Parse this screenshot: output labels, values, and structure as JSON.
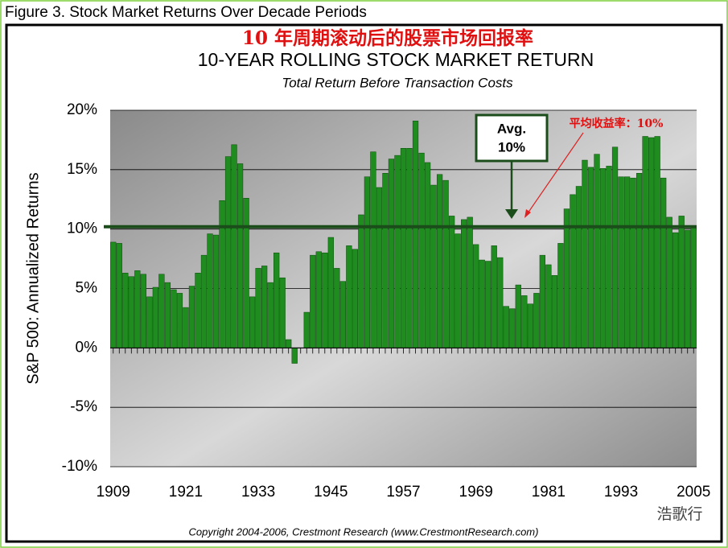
{
  "chart_data": {
    "type": "bar",
    "figure_caption": "Figure 3.  Stock Market Returns Over Decade Periods",
    "chinese_title": "10 年周期滚动后的股票市场回报率",
    "title": "10-YEAR ROLLING STOCK MARKET RETURN",
    "subtitle": "Total Return Before Transaction Costs",
    "y_label": "S&P 500: Annualized Returns",
    "copyright": "Copyright 2004-2006, Crestmont Research (www.CrestmontResearch.com)",
    "watermark": "浩歌行",
    "avg_box_label": [
      "Avg.",
      "10%"
    ],
    "avg_annotation": "平均收益率：10%",
    "avg_line": 10.2,
    "color": "#1e8c1e",
    "avg_color": "#1b4d1b",
    "ylim": [
      -10,
      20
    ],
    "yticks": [
      {
        "value": -10,
        "label": "-10%"
      },
      {
        "value": -5,
        "label": "-5%"
      },
      {
        "value": 0,
        "label": "0%"
      },
      {
        "value": 5,
        "label": "5%"
      },
      {
        "value": 10,
        "label": "10%"
      },
      {
        "value": 15,
        "label": "15%"
      },
      {
        "value": 20,
        "label": "20%"
      }
    ],
    "grid": true,
    "categories": [
      "1909",
      null,
      null,
      null,
      null,
      null,
      null,
      null,
      null,
      null,
      null,
      null,
      "1921",
      null,
      null,
      null,
      null,
      null,
      null,
      null,
      null,
      null,
      null,
      null,
      "1933",
      null,
      null,
      null,
      null,
      null,
      null,
      null,
      null,
      null,
      null,
      null,
      "1945",
      null,
      null,
      null,
      null,
      null,
      null,
      null,
      null,
      null,
      null,
      null,
      "1957",
      null,
      null,
      null,
      null,
      null,
      null,
      null,
      null,
      null,
      null,
      null,
      "1969",
      null,
      null,
      null,
      null,
      null,
      null,
      null,
      null,
      null,
      null,
      null,
      "1981",
      null,
      null,
      null,
      null,
      null,
      null,
      null,
      null,
      null,
      null,
      null,
      "1993",
      null,
      null,
      null,
      null,
      null,
      null,
      null,
      null,
      null,
      null,
      null,
      "2005"
    ],
    "values": [
      8.9,
      8.8,
      6.3,
      6.0,
      6.5,
      6.2,
      4.3,
      5.1,
      6.2,
      5.5,
      4.9,
      4.6,
      3.4,
      5.2,
      6.3,
      7.8,
      9.6,
      9.5,
      12.4,
      16.1,
      17.1,
      15.5,
      12.6,
      4.3,
      6.7,
      6.9,
      5.5,
      8.0,
      5.9,
      0.7,
      -1.3,
      0,
      3.0,
      7.8,
      8.1,
      8.0,
      9.3,
      6.7,
      5.6,
      8.6,
      8.3,
      11.2,
      14.4,
      16.5,
      13.5,
      14.7,
      15.9,
      16.2,
      16.8,
      16.8,
      19.1,
      16.4,
      15.6,
      13.7,
      14.6,
      14.1,
      11.1,
      9.6,
      10.8,
      11.0,
      8.7,
      7.4,
      7.3,
      8.6,
      7.6,
      3.5,
      3.3,
      5.3,
      4.4,
      3.7,
      4.6,
      7.8,
      7.0,
      6.1,
      8.8,
      11.7,
      12.9,
      13.6,
      15.8,
      15.2,
      16.3,
      15.1,
      15.3,
      16.9,
      14.4,
      14.4,
      14.3,
      14.7,
      17.8,
      17.7,
      17.8,
      14.3,
      11.0,
      9.7,
      11.1,
      9.9,
      10.2
    ]
  }
}
